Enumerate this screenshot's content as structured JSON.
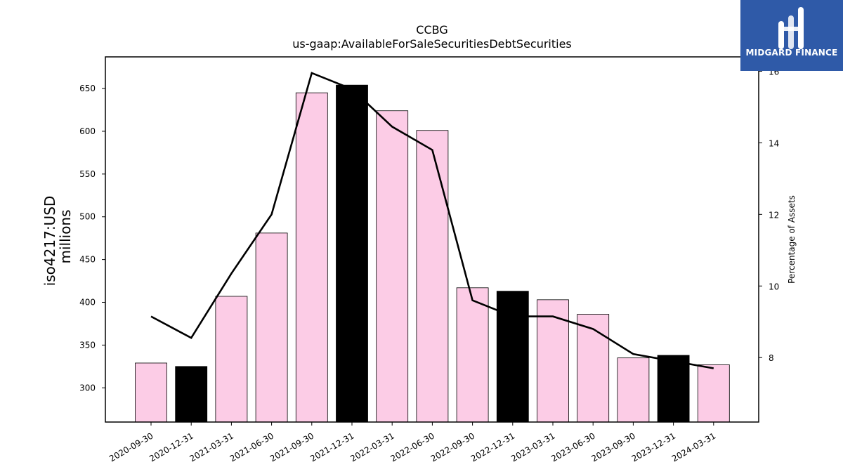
{
  "chart_data": {
    "type": "bar",
    "title": "CCBG",
    "subtitle": "us-gaap:AvailableForSaleSecuritiesDebtSecurities",
    "ylabel_left": [
      "iso4217:USD",
      "millions"
    ],
    "ylabel_right": "Percentage of Assets",
    "categories": [
      "2020-09-30",
      "2020-12-31",
      "2021-03-31",
      "2021-06-30",
      "2021-09-30",
      "2021-12-31",
      "2022-03-31",
      "2022-06-30",
      "2022-09-30",
      "2022-12-31",
      "2023-03-31",
      "2023-06-30",
      "2023-09-30",
      "2023-12-31",
      "2024-03-31"
    ],
    "bar_values": [
      329,
      325,
      407,
      481,
      645,
      654,
      624,
      601,
      417,
      413,
      403,
      386,
      335,
      338,
      327
    ],
    "bar_highlight": [
      false,
      true,
      false,
      false,
      false,
      true,
      false,
      false,
      false,
      true,
      false,
      false,
      false,
      true,
      false
    ],
    "line_values": [
      9.15,
      8.55,
      10.35,
      12.0,
      15.95,
      15.5,
      14.45,
      13.8,
      9.6,
      9.15,
      9.15,
      8.8,
      8.1,
      7.9,
      7.7
    ],
    "ylim_left": [
      260,
      687
    ],
    "ylim_right": [
      6.2,
      16.4
    ],
    "yticks_left": [
      300,
      350,
      400,
      450,
      500,
      550,
      600,
      650
    ],
    "yticks_right": [
      8,
      10,
      12,
      14,
      16
    ],
    "colors": {
      "bar": "#fccce6",
      "bar_highlight": "#000000",
      "line": "#000000"
    },
    "grid": false
  },
  "logo": {
    "text": "MIDGARD FINANCE",
    "icon": "midgard-finance-logo-icon",
    "color": "#2f5aa8"
  }
}
